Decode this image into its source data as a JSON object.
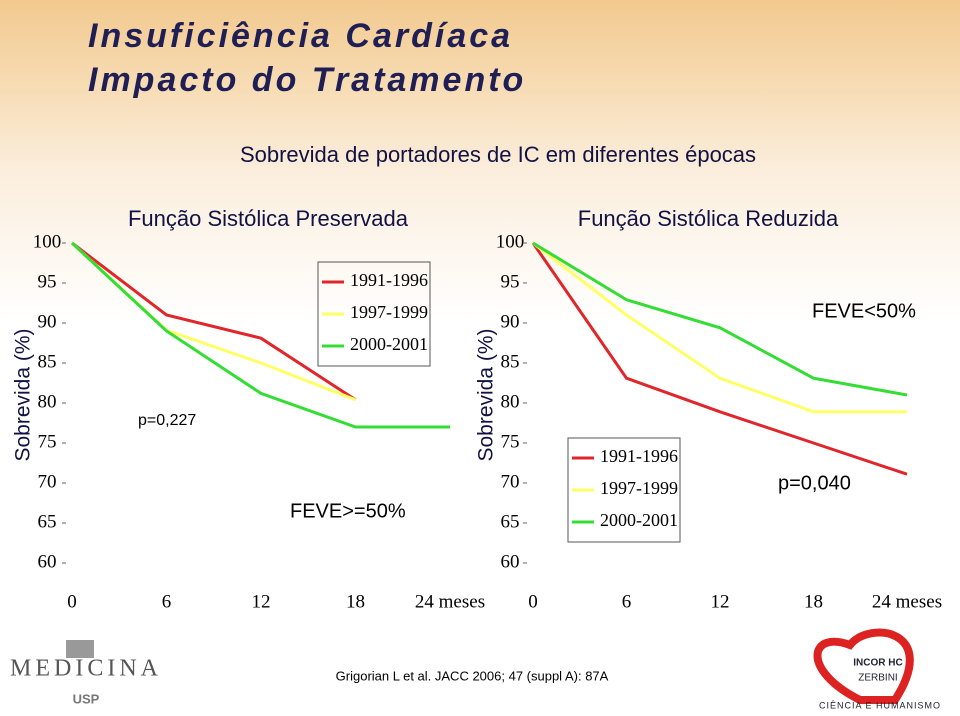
{
  "slide": {
    "title_lines": [
      "Insuficiência Cardíaca",
      "Impacto do Tratamento"
    ],
    "subtitle": "Sobrevida de portadores de IC em diferentes épocas",
    "citation": "Grigorian L et al. JACC 2006; 47 (suppl A): 87A",
    "logos": [
      "MEDICINA",
      "USP",
      "INCOR HC",
      "ZERBINI",
      "CIÊNCIA E HUMANISMO"
    ]
  },
  "chart_data": [
    {
      "type": "line",
      "title": "Função Sistólica Preservada",
      "ylabel": "Sobrevida (%)",
      "x": [
        0,
        6,
        12,
        18,
        24
      ],
      "xlim": [
        0,
        24
      ],
      "xticks": [
        0,
        6,
        12,
        18,
        {
          "value": 24,
          "label": "24 meses"
        }
      ],
      "ylim": [
        60,
        100
      ],
      "yticks": [
        60,
        65,
        70,
        75,
        80,
        85,
        90,
        95,
        100
      ],
      "series": [
        {
          "name": "1991-1996",
          "color": "#e0262a",
          "values": [
            100,
            91,
            88.1,
            80.4,
            null
          ]
        },
        {
          "name": "1997-1999",
          "color": "#ffff66",
          "values": [
            100,
            89.1,
            85,
            80.4,
            null
          ]
        },
        {
          "name": "2000-2001",
          "color": "#33dd33",
          "values": [
            100,
            89,
            81.2,
            77,
            77
          ]
        }
      ],
      "annotations": [
        "p=0,227",
        "FEVE>=50%"
      ]
    },
    {
      "type": "line",
      "title": "Função Sistólica Reduzida",
      "ylabel": "Sobrevida (%)",
      "x": [
        0,
        6,
        12,
        18,
        24
      ],
      "xlim": [
        0,
        24
      ],
      "xticks": [
        0,
        6,
        12,
        18,
        {
          "value": 24,
          "label": "24 meses"
        }
      ],
      "ylim": [
        60,
        100
      ],
      "yticks": [
        60,
        65,
        70,
        75,
        80,
        85,
        90,
        95,
        100
      ],
      "series": [
        {
          "name": "1991-1996",
          "color": "#e0262a",
          "values": [
            100,
            83.1,
            78.9,
            75,
            71.1
          ]
        },
        {
          "name": "1997-1999",
          "color": "#ffff66",
          "values": [
            100,
            91,
            83.1,
            78.9,
            78.9
          ]
        },
        {
          "name": "2000-2001",
          "color": "#33dd33",
          "values": [
            100,
            92.9,
            89.4,
            83.1,
            81
          ]
        }
      ],
      "annotations": [
        "FEVE<50%",
        "p=0,040"
      ]
    }
  ]
}
